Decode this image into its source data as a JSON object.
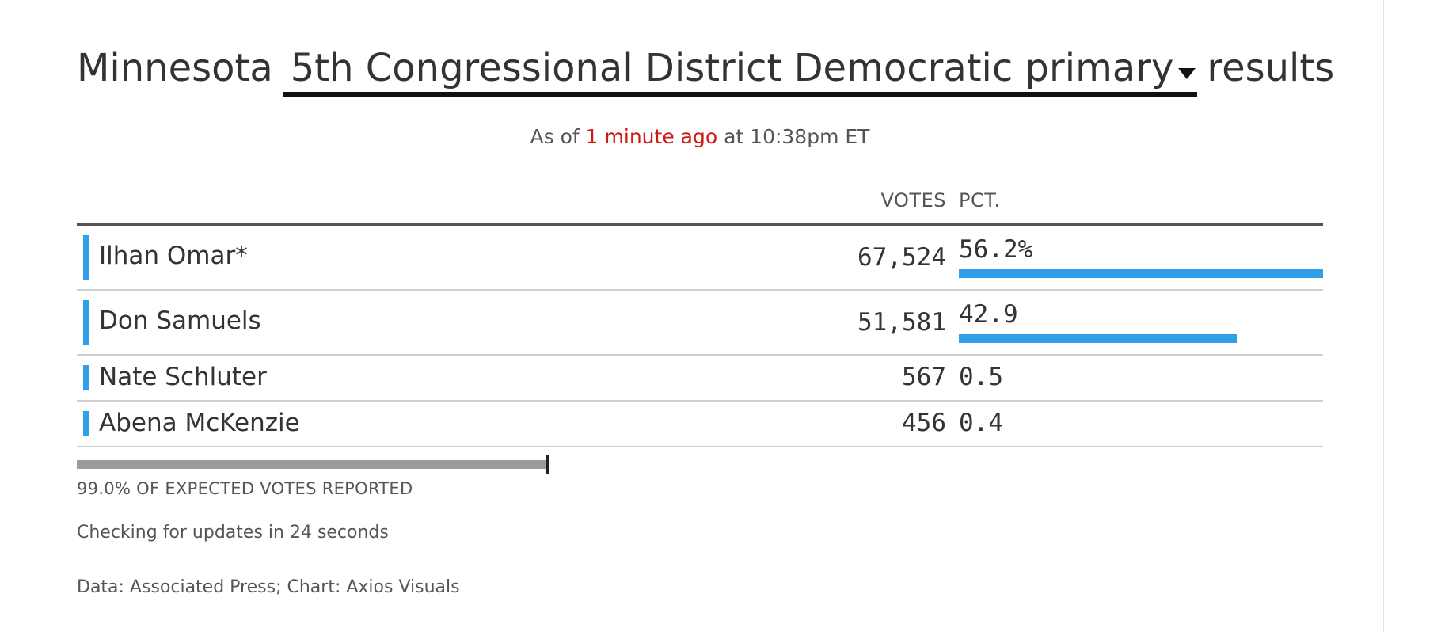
{
  "header": {
    "prefix": "Minnesota",
    "race_selected": "5th Congressional District Democratic primary",
    "suffix": "results"
  },
  "status": {
    "as_of_prefix": "As of",
    "time_ago": "1 minute ago",
    "at_text": "at 10:38pm ET"
  },
  "table": {
    "col_votes": "VOTES",
    "col_pct": "PCT.",
    "rows": [
      {
        "name": "Ilhan Omar*",
        "votes": "67,524",
        "pct": "56.2%",
        "pct_value": 56.2,
        "show_bar": true
      },
      {
        "name": "Don Samuels",
        "votes": "51,581",
        "pct": "42.9",
        "pct_value": 42.9,
        "show_bar": true
      },
      {
        "name": "Nate Schluter",
        "votes": "567",
        "pct": "0.5",
        "pct_value": 0.5,
        "show_bar": false
      },
      {
        "name": "Abena McKenzie",
        "votes": "456",
        "pct": "0.4",
        "pct_value": 0.4,
        "show_bar": false
      }
    ]
  },
  "reporting": {
    "percent": 99.0,
    "label": "99.0% OF EXPECTED VOTES REPORTED"
  },
  "footer": {
    "checking": "Checking for updates in 24 seconds",
    "source": "Data: Associated Press; Chart: Axios Visuals"
  },
  "colors": {
    "candidate_bar": "#2e9fe8",
    "time_ago": "#cc1a12",
    "progress": "#9c9c9c"
  },
  "icons": {
    "dropdown": "caret-down-icon"
  }
}
